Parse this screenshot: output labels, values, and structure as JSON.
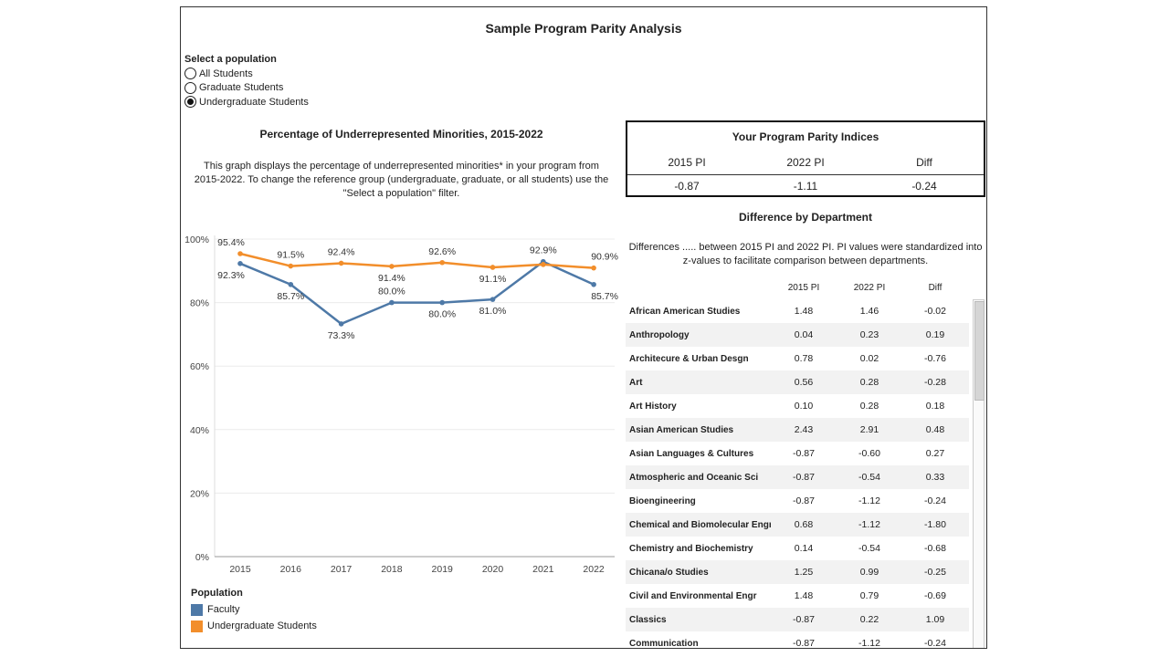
{
  "page": {
    "title": "Sample Program Parity Analysis"
  },
  "filter": {
    "title": "Select a population",
    "options": [
      {
        "label": "All Students",
        "selected": false
      },
      {
        "label": "Graduate Students",
        "selected": false
      },
      {
        "label": "Undergraduate Students",
        "selected": true
      }
    ]
  },
  "chart": {
    "title": "Percentage of Underrepresented Minorities, 2015-2022",
    "description": "This graph displays the percentage of underrepresented minorities* in your program from 2015-2022. To change the reference group (undergraduate, graduate, or all students) use the \"Select a population\" filter.",
    "legend_title": "Population"
  },
  "chart_data": {
    "type": "line",
    "title": "Percentage of Underrepresented Minorities, 2015-2022",
    "x": [
      "2015",
      "2016",
      "2017",
      "2018",
      "2019",
      "2020",
      "2021",
      "2022"
    ],
    "ylim": [
      0,
      100
    ],
    "yticks": [
      "0%",
      "20%",
      "40%",
      "60%",
      "80%",
      "100%"
    ],
    "ytick_values": [
      0,
      20,
      40,
      60,
      80,
      100
    ],
    "grid": true,
    "legend_position": "bottom-left",
    "series": [
      {
        "name": "Faculty",
        "color": "#4e79a7",
        "values": [
          92.3,
          85.7,
          73.3,
          80.0,
          80.0,
          81.0,
          92.9,
          85.7
        ],
        "labels": [
          "92.3%",
          "85.7%",
          "73.3%",
          "80.0%",
          "80.0%",
          "81.0%",
          "92.9%",
          "85.7%"
        ]
      },
      {
        "name": "Undergraduate Students",
        "color": "#f28e2b",
        "values": [
          95.4,
          91.5,
          92.4,
          91.4,
          92.6,
          91.1,
          92.0,
          90.9
        ],
        "labels": [
          "95.4%",
          "91.5%",
          "92.4%",
          "91.4%",
          "92.6%",
          "91.1%",
          "",
          "90.9%"
        ]
      }
    ]
  },
  "pi_box": {
    "title": "Your Program Parity Indices",
    "headers": [
      "2015 PI",
      "2022 PI",
      "Diff"
    ],
    "values": [
      "-0.87",
      "-1.11",
      "-0.24"
    ]
  },
  "dept": {
    "title": "Difference by Department",
    "description": "Differences ..... between 2015 PI and 2022 PI. PI values were standardized into z-values to facilitate comparison between departments.",
    "headers": [
      "2015 PI",
      "2022 PI",
      "Diff"
    ],
    "rows": [
      {
        "name": "African American Studies",
        "pi2015": "1.48",
        "pi2022": "1.46",
        "diff": "-0.02"
      },
      {
        "name": "Anthropology",
        "pi2015": "0.04",
        "pi2022": "0.23",
        "diff": "0.19"
      },
      {
        "name": "Architecure & Urban Desgn",
        "pi2015": "0.78",
        "pi2022": "0.02",
        "diff": "-0.76"
      },
      {
        "name": "Art",
        "pi2015": "0.56",
        "pi2022": "0.28",
        "diff": "-0.28"
      },
      {
        "name": "Art History",
        "pi2015": "0.10",
        "pi2022": "0.28",
        "diff": "0.18"
      },
      {
        "name": "Asian American Studies",
        "pi2015": "2.43",
        "pi2022": "2.91",
        "diff": "0.48"
      },
      {
        "name": "Asian Languages & Cultures",
        "pi2015": "-0.87",
        "pi2022": "-0.60",
        "diff": "0.27"
      },
      {
        "name": "Atmospheric and Oceanic Sci",
        "pi2015": "-0.87",
        "pi2022": "-0.54",
        "diff": "0.33"
      },
      {
        "name": "Bioengineering",
        "pi2015": "-0.87",
        "pi2022": "-1.12",
        "diff": "-0.24"
      },
      {
        "name": "Chemical and Biomolecular Engr",
        "pi2015": "0.68",
        "pi2022": "-1.12",
        "diff": "-1.80"
      },
      {
        "name": "Chemistry and Biochemistry",
        "pi2015": "0.14",
        "pi2022": "-0.54",
        "diff": "-0.68"
      },
      {
        "name": "Chicana/o Studies",
        "pi2015": "1.25",
        "pi2022": "0.99",
        "diff": "-0.25"
      },
      {
        "name": "Civil and Environmental Engr",
        "pi2015": "1.48",
        "pi2022": "0.79",
        "diff": "-0.69"
      },
      {
        "name": "Classics",
        "pi2015": "-0.87",
        "pi2022": "0.22",
        "diff": "1.09"
      },
      {
        "name": "Communication",
        "pi2015": "-0.87",
        "pi2022": "-1.12",
        "diff": "-0.24"
      }
    ]
  }
}
